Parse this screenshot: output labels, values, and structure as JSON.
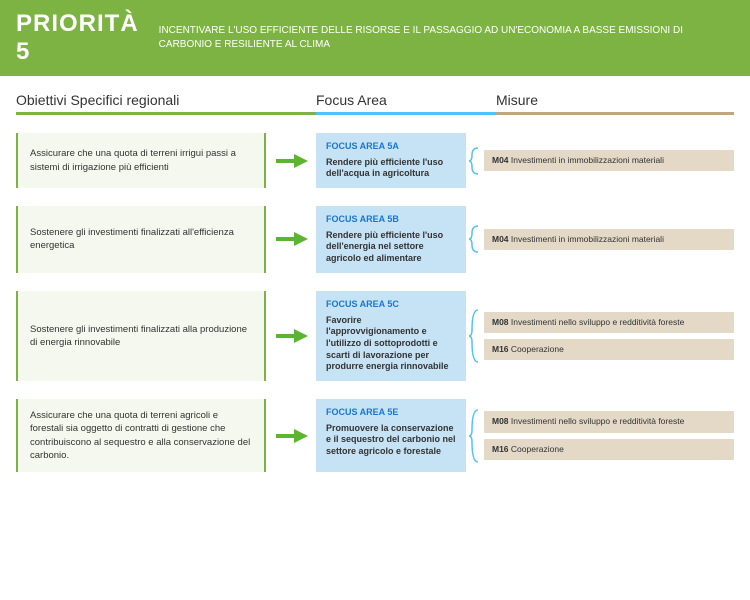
{
  "colors": {
    "green": "#7cb342",
    "lightGreen": "#f4f8ee",
    "blue": "#4fc3f7",
    "blueDark": "#1976d2",
    "focusBg": "#c5e3f5",
    "tan": "#bfa77a",
    "tanLight": "#e3d9c6",
    "arrow": "#5cb531",
    "brace": "#4fc3f7"
  },
  "header": {
    "title": "PRIORITÀ 5",
    "subtitle": "INCENTIVARE L'USO EFFICIENTE DELLE RISORSE E IL PASSAGGIO\nAD UN'ECONOMIA A BASSE EMISSIONI DI CARBONIO E RESILIENTE AL CLIMA"
  },
  "columns": {
    "c1": "Obiettivi Specifici regionali",
    "c2": "Focus Area",
    "c3": "Misure"
  },
  "rows": [
    {
      "objective": "Assicurare che una quota di terreni irrigui passi a sistemi di irrigazione più efficienti",
      "focusTitle": "FOCUS AREA 5A",
      "focusText": "Rendere più efficiente l'uso dell'acqua in agricoltura",
      "measures": [
        {
          "code": "M04",
          "label": "Investimenti in immobilizzazioni materiali"
        }
      ]
    },
    {
      "objective": "Sostenere gli investimenti finalizzati all'efficienza energetica",
      "focusTitle": "FOCUS AREA 5B",
      "focusText": "Rendere più efficiente l'uso dell'energia nel settore agricolo ed alimentare",
      "measures": [
        {
          "code": "M04",
          "label": "Investimenti in immobilizzazioni materiali"
        }
      ]
    },
    {
      "objective": "Sostenere gli investimenti finalizzati alla produzione di energia rinnovabile",
      "focusTitle": "FOCUS AREA 5C",
      "focusText": "Favorire l'approvvigionamento e l'utilizzo di sottoprodotti e scarti di lavorazione per produrre energia rinnovabile",
      "measures": [
        {
          "code": "M08",
          "label": "Investimenti nello sviluppo e redditività foreste"
        },
        {
          "code": "M16",
          "label": "Cooperazione"
        }
      ]
    },
    {
      "objective": "Assicurare che una quota di terreni agricoli e forestali sia oggetto di contratti di gestione che contribuiscono al sequestro e alla conservazione del carbonio.",
      "focusTitle": "FOCUS AREA 5E",
      "focusText": "Promuovere la conservazione e il sequestro del carbonio nel settore agricolo e forestale",
      "measures": [
        {
          "code": "M08",
          "label": "Investimenti nello sviluppo e redditività foreste"
        },
        {
          "code": "M16",
          "label": "Cooperazione"
        }
      ]
    }
  ]
}
